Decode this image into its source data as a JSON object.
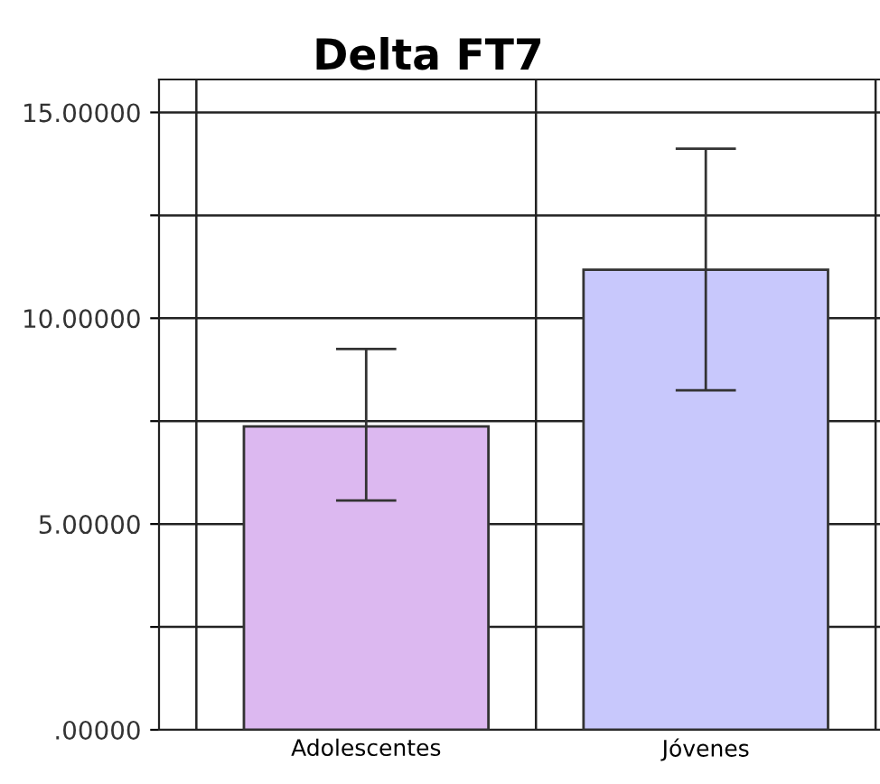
{
  "chart_data": {
    "type": "bar",
    "title": "Delta FT7",
    "categories": [
      "Adolescentes",
      "Jóvenes"
    ],
    "values": [
      7.37,
      11.18
    ],
    "colors": [
      "#dcb8f0",
      "#c8c8fc"
    ],
    "errors": [
      [
        5.57,
        9.25
      ],
      [
        8.25,
        14.12
      ]
    ],
    "ylim": [
      0,
      15.8
    ],
    "yticks": [
      {
        "value": 0,
        "label": ".00000"
      },
      {
        "value": 2.5,
        "label": null
      },
      {
        "value": 5,
        "label": "5.00000"
      },
      {
        "value": 7.5,
        "label": null
      },
      {
        "value": 10,
        "label": "10.00000"
      },
      {
        "value": 12.5,
        "label": null
      },
      {
        "value": 15,
        "label": "15.00000"
      }
    ],
    "grid": true
  }
}
